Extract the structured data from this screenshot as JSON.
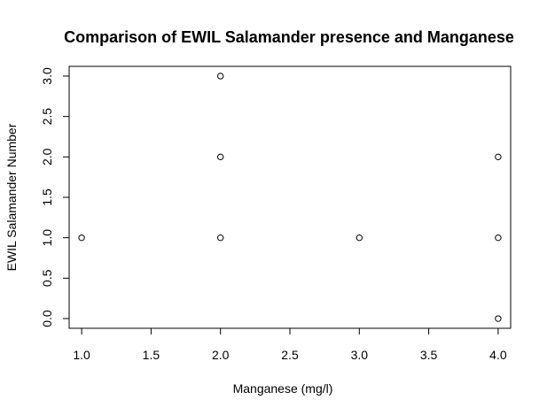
{
  "chart_data": {
    "type": "scatter",
    "title": "Comparison of EWIL Salamander presence and Manganese",
    "xlabel": "Manganese (mg/l)",
    "ylabel": "EWIL Salamander Number",
    "xlim": [
      0.91,
      4.09
    ],
    "ylim": [
      -0.12,
      3.12
    ],
    "x_ticks": [
      "1.0",
      "1.5",
      "2.0",
      "2.5",
      "3.0",
      "3.5",
      "4.0"
    ],
    "y_ticks": [
      "0.0",
      "0.5",
      "1.0",
      "1.5",
      "2.0",
      "2.5",
      "3.0"
    ],
    "grid": false,
    "legend": "none",
    "points": [
      {
        "x": 1.0,
        "y": 1.0
      },
      {
        "x": 2.0,
        "y": 1.0
      },
      {
        "x": 2.0,
        "y": 2.0
      },
      {
        "x": 2.0,
        "y": 3.0
      },
      {
        "x": 3.0,
        "y": 1.0
      },
      {
        "x": 4.0,
        "y": 0.0
      },
      {
        "x": 4.0,
        "y": 1.0
      },
      {
        "x": 4.0,
        "y": 2.0
      }
    ],
    "point_style": "open-circle",
    "colors": {
      "stroke": "#000000",
      "background": "#ffffff"
    }
  }
}
